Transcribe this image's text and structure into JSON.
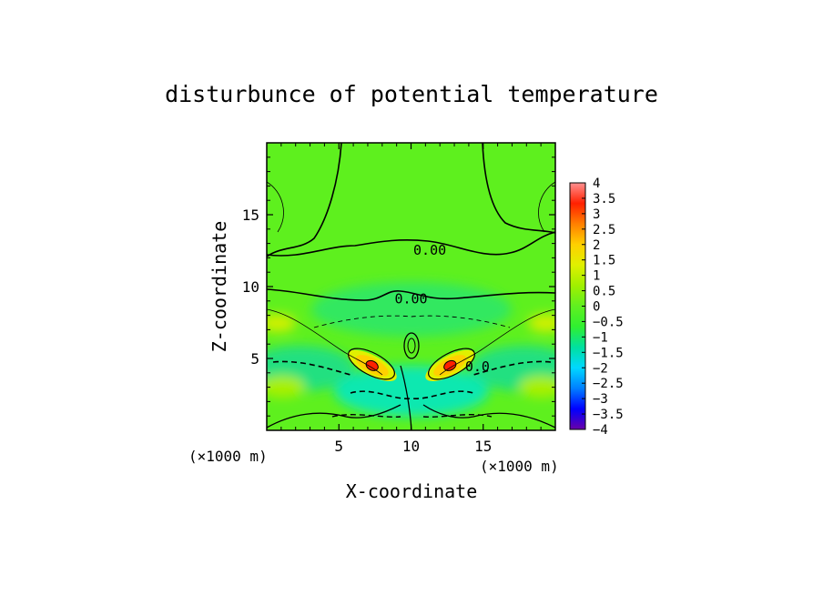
{
  "chart_data": {
    "type": "heatmap",
    "title": "disturbunce of potential temperature",
    "xlabel": "X-coordinate",
    "ylabel": "Z-coordinate",
    "x_unit": "(×1000 m)",
    "y_unit": "(×1000 m)",
    "xlim": [
      0,
      20
    ],
    "ylim": [
      0,
      20
    ],
    "x_ticks": [
      5,
      10,
      15
    ],
    "y_ticks": [
      5,
      10,
      15
    ],
    "colorbar": {
      "min": -4,
      "max": 4,
      "ticks": [
        "4",
        "3.5",
        "3",
        "2.5",
        "2",
        "1.5",
        "1",
        "0.5",
        "0",
        "−0.5",
        "−1",
        "−1.5",
        "−2",
        "−2.5",
        "−3",
        "−3.5",
        "−4"
      ],
      "colors": [
        "#6a00a8",
        "#0000ff",
        "#0080ff",
        "#00d8ff",
        "#00e0a0",
        "#30f030",
        "#60f020",
        "#a0f000",
        "#e0f000",
        "#ffd000",
        "#ff8000",
        "#ff2000",
        "#ff9090"
      ]
    },
    "contour_labels": [
      {
        "text": "0.00",
        "x": 11.3,
        "y": 12.6
      },
      {
        "text": "0.00",
        "x": 10.0,
        "y": 9.2
      },
      {
        "text": "0.0",
        "x": 14.6,
        "y": 4.5
      }
    ],
    "features": [
      {
        "name": "warm anomaly left",
        "x": 7.3,
        "y": 4.5,
        "value": 3.0
      },
      {
        "name": "warm anomaly right",
        "x": 12.7,
        "y": 4.5,
        "value": 3.0
      }
    ]
  }
}
